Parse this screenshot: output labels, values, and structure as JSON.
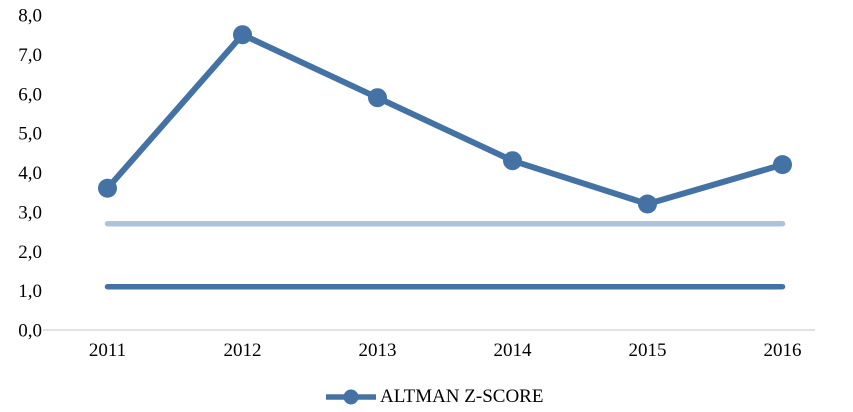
{
  "chart_data": {
    "type": "line",
    "title": "",
    "categories": [
      "2011",
      "2012",
      "2013",
      "2014",
      "2015",
      "2016"
    ],
    "series": [
      {
        "name": "ALTMAN Z-SCORE",
        "values": [
          3.6,
          7.5,
          5.9,
          4.3,
          3.2,
          4.2
        ],
        "color": "#4472A4",
        "marker": "circle",
        "in_legend": true
      },
      {
        "name": "upper-threshold-line",
        "values": [
          2.7,
          2.7,
          2.7,
          2.7,
          2.7,
          2.7
        ],
        "color": "#AEC1DE",
        "marker": "none",
        "in_legend": false
      },
      {
        "name": "lower-threshold-line",
        "values": [
          1.1,
          1.1,
          1.1,
          1.1,
          1.1,
          1.1
        ],
        "color": "#4472A4",
        "marker": "none",
        "in_legend": false
      }
    ],
    "y_axis": {
      "min": 0,
      "max": 8,
      "step": 1,
      "tick_labels": [
        "0,0",
        "1,0",
        "2,0",
        "3,0",
        "4,0",
        "5,0",
        "6,0",
        "7,0",
        "8,0"
      ],
      "decimal_separator": ","
    },
    "x_axis": {
      "tick_labels": [
        "2011",
        "2012",
        "2013",
        "2014",
        "2015",
        "2016"
      ]
    },
    "grid": false,
    "legend_position": "bottom",
    "colors": {
      "series_blue": "#4472A4",
      "threshold_light_blue": "#AEC1DE",
      "axis_line_gray": "#D9D9D9",
      "text_black": "#000000"
    }
  },
  "legend": {
    "label": "ALTMAN Z-SCORE"
  }
}
